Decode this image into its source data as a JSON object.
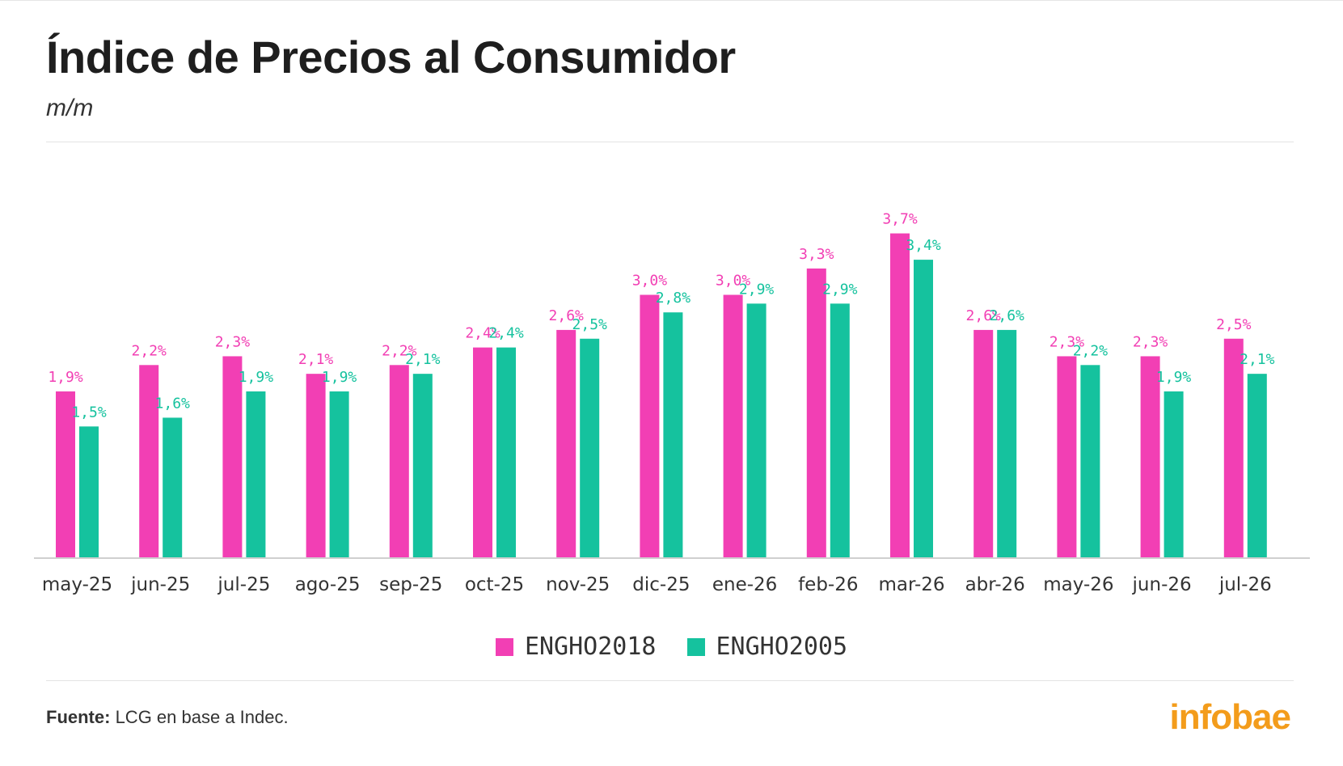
{
  "header": {
    "title": "Índice de Precios al Consumidor",
    "subtitle": "m/m"
  },
  "chart_data": {
    "type": "bar",
    "categories": [
      "may-25",
      "jun-25",
      "jul-25",
      "ago-25",
      "sep-25",
      "oct-25",
      "nov-25",
      "dic-25",
      "ene-26",
      "feb-26",
      "mar-26",
      "abr-26",
      "may-26",
      "jun-26",
      "jul-26"
    ],
    "series": [
      {
        "name": "ENGHO2018",
        "color": "#f23fb4",
        "values": [
          1.9,
          2.2,
          2.3,
          2.1,
          2.2,
          2.4,
          2.6,
          3.0,
          3.0,
          3.3,
          3.7,
          2.6,
          2.3,
          2.3,
          2.5
        ],
        "labels": [
          "1,9%",
          "2,2%",
          "2,3%",
          "2,1%",
          "2,2%",
          "2,4%",
          "2,6%",
          "3,0%",
          "3,0%",
          "3,3%",
          "3,7%",
          "2,6%",
          "2,3%",
          "2,3%",
          "2,5%"
        ]
      },
      {
        "name": "ENGHO2005",
        "color": "#15c29e",
        "values": [
          1.5,
          1.6,
          1.9,
          1.9,
          2.1,
          2.4,
          2.5,
          2.8,
          2.9,
          2.9,
          3.4,
          2.6,
          2.2,
          1.9,
          2.1
        ],
        "labels": [
          "1,5%",
          "1,6%",
          "1,9%",
          "1,9%",
          "2,1%",
          "2,4%",
          "2,5%",
          "2,8%",
          "2,9%",
          "2,9%",
          "3,4%",
          "2,6%",
          "2,2%",
          "1,9%",
          "2,1%"
        ]
      }
    ],
    "legend_position": "bottom-center",
    "grid": false
  },
  "footer": {
    "source_label": "Fuente:",
    "source_text": " LCG en base a Indec.",
    "logo": "infobae"
  }
}
